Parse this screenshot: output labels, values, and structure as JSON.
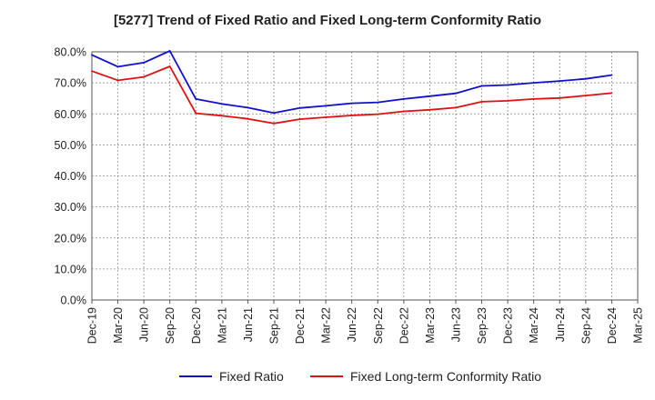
{
  "chart_data": {
    "type": "line",
    "title": "[5277]  Trend of Fixed Ratio and Fixed Long-term Conformity Ratio",
    "xlabel": "",
    "ylabel": "",
    "categories": [
      "Dec-19",
      "Mar-20",
      "Jun-20",
      "Sep-20",
      "Dec-20",
      "Mar-21",
      "Jun-21",
      "Sep-21",
      "Dec-21",
      "Mar-22",
      "Jun-22",
      "Sep-22",
      "Dec-22",
      "Mar-23",
      "Jun-23",
      "Sep-23",
      "Dec-23",
      "Mar-24",
      "Jun-24",
      "Sep-24",
      "Dec-24",
      "Mar-25"
    ],
    "ylim": [
      0,
      80
    ],
    "yticks": [
      0,
      10,
      20,
      30,
      40,
      50,
      60,
      70,
      80
    ],
    "ytick_labels": [
      "0.0%",
      "10.0%",
      "20.0%",
      "30.0%",
      "40.0%",
      "50.0%",
      "60.0%",
      "70.0%",
      "80.0%"
    ],
    "grid": true,
    "legend_position": "bottom",
    "series": [
      {
        "name": "Fixed Ratio",
        "color": "#1010cc",
        "values": [
          79.0,
          75.2,
          76.5,
          80.3,
          64.8,
          63.2,
          62.0,
          60.3,
          61.9,
          62.6,
          63.4,
          63.7,
          64.8,
          65.7,
          66.6,
          69.0,
          69.3,
          70.0,
          70.6,
          71.3,
          72.5,
          null
        ]
      },
      {
        "name": "Fixed Long-term Conformity Ratio",
        "color": "#e01010",
        "values": [
          73.8,
          70.8,
          71.9,
          75.3,
          60.2,
          59.4,
          58.4,
          56.9,
          58.3,
          58.9,
          59.5,
          59.9,
          60.8,
          61.3,
          62.0,
          63.9,
          64.2,
          64.8,
          65.1,
          65.9,
          66.7,
          null
        ]
      }
    ]
  }
}
